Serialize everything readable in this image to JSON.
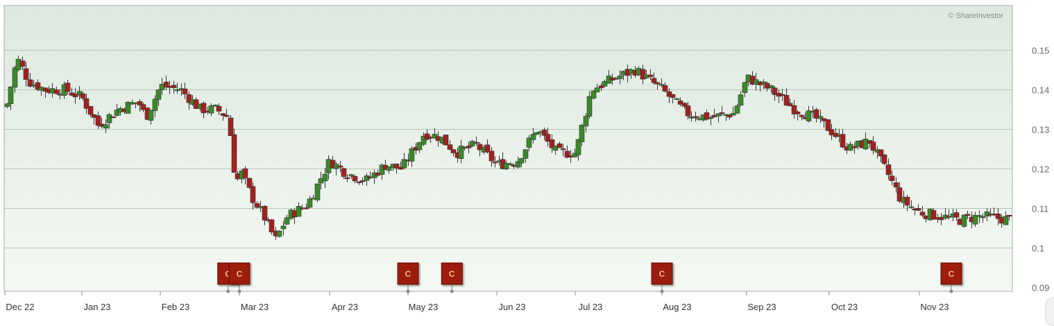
{
  "chart_data": {
    "type": "candlestick",
    "copyright": "© ShareInvestor",
    "y_axis": {
      "ticks": [
        "0.15",
        "0.14",
        "0.13",
        "0.12",
        "0.11",
        "0.1",
        "0.09"
      ],
      "range": [
        0.089,
        0.156
      ]
    },
    "x_axis": {
      "labels": [
        "Dec 22",
        "Jan 23",
        "Feb 23",
        "Mar 23",
        "Apr 23",
        "May 23",
        "Jun 23",
        "Jul 23",
        "Aug 23",
        "Sep 23",
        "Oct 23",
        "Nov 23"
      ]
    },
    "grid": true,
    "colors": {
      "up": "#3a8a2a",
      "down": "#a42020",
      "background_top": "#dde9df",
      "background_bottom": "#f4f8f3"
    },
    "annotations": [
      {
        "label": "C",
        "month": "Feb 23",
        "position": 0.85
      },
      {
        "label": "C",
        "month": "Mar 23",
        "position": 0.0
      },
      {
        "label": "C",
        "month": "May 23",
        "position": 0.0
      },
      {
        "label": "C",
        "month": "May 23",
        "position": 0.55
      },
      {
        "label": "C",
        "month": "Aug 23",
        "position": 0.0
      },
      {
        "label": "C",
        "month": "Nov 23",
        "position": 0.4
      }
    ],
    "close_path": [
      [
        "Dec 22",
        0.0,
        0.134
      ],
      [
        "Dec 22",
        0.15,
        0.148
      ],
      [
        "Dec 22",
        0.3,
        0.142
      ],
      [
        "Dec 22",
        0.5,
        0.14
      ],
      [
        "Dec 22",
        0.75,
        0.14
      ],
      [
        "Jan 23",
        0.0,
        0.138
      ],
      [
        "Jan 23",
        0.2,
        0.131
      ],
      [
        "Jan 23",
        0.45,
        0.135
      ],
      [
        "Jan 23",
        0.7,
        0.137
      ],
      [
        "Jan 23",
        0.8,
        0.133
      ],
      [
        "Feb 23",
        0.0,
        0.141
      ],
      [
        "Feb 23",
        0.25,
        0.14
      ],
      [
        "Feb 23",
        0.5,
        0.135
      ],
      [
        "Feb 23",
        0.7,
        0.135
      ],
      [
        "Feb 23",
        0.85,
        0.133
      ],
      [
        "Feb 23",
        0.95,
        0.115
      ],
      [
        "Mar 23",
        0.0,
        0.12
      ],
      [
        "Mar 23",
        0.15,
        0.113
      ],
      [
        "Mar 23",
        0.3,
        0.108
      ],
      [
        "Mar 23",
        0.45,
        0.102
      ],
      [
        "Mar 23",
        0.6,
        0.108
      ],
      [
        "Mar 23",
        0.85,
        0.111
      ],
      [
        "Apr 23",
        0.0,
        0.122
      ],
      [
        "Apr 23",
        0.2,
        0.119
      ],
      [
        "Apr 23",
        0.45,
        0.117
      ],
      [
        "Apr 23",
        0.7,
        0.121
      ],
      [
        "Apr 23",
        0.9,
        0.12
      ],
      [
        "May 23",
        0.2,
        0.129
      ],
      [
        "May 23",
        0.4,
        0.128
      ],
      [
        "May 23",
        0.6,
        0.124
      ],
      [
        "May 23",
        0.85,
        0.126
      ],
      [
        "Jun 23",
        0.0,
        0.121
      ],
      [
        "Jun 23",
        0.25,
        0.122
      ],
      [
        "Jun 23",
        0.5,
        0.13
      ],
      [
        "Jun 23",
        0.75,
        0.124
      ],
      [
        "Jul 23",
        0.0,
        0.124
      ],
      [
        "Jul 23",
        0.2,
        0.14
      ],
      [
        "Jul 23",
        0.5,
        0.143
      ],
      [
        "Jul 23",
        0.75,
        0.145
      ],
      [
        "Aug 23",
        0.0,
        0.14
      ],
      [
        "Aug 23",
        0.3,
        0.134
      ],
      [
        "Aug 23",
        0.6,
        0.133
      ],
      [
        "Aug 23",
        0.9,
        0.134
      ],
      [
        "Sep 23",
        0.0,
        0.143
      ],
      [
        "Sep 23",
        0.3,
        0.14
      ],
      [
        "Sep 23",
        0.6,
        0.135
      ],
      [
        "Sep 23",
        0.85,
        0.133
      ],
      [
        "Oct 23",
        0.0,
        0.13
      ],
      [
        "Oct 23",
        0.25,
        0.125
      ],
      [
        "Oct 23",
        0.5,
        0.127
      ],
      [
        "Oct 23",
        0.75,
        0.118
      ],
      [
        "Oct 23",
        0.9,
        0.112
      ],
      [
        "Nov 23",
        0.0,
        0.109
      ],
      [
        "Nov 23",
        0.25,
        0.108
      ],
      [
        "Nov 23",
        0.5,
        0.107
      ],
      [
        "Nov 23",
        0.75,
        0.108
      ],
      [
        "Nov 23",
        1.2,
        0.107
      ]
    ]
  }
}
